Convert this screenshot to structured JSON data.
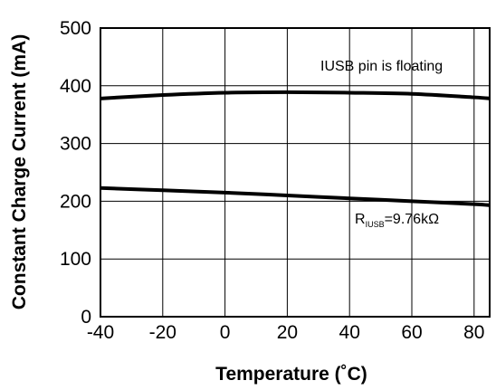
{
  "chart_data": {
    "type": "line",
    "xlabel": "Temperature (˚C)",
    "ylabel": "Constant Charge Current (mA)",
    "xlim": [
      -40,
      85
    ],
    "ylim": [
      0,
      500
    ],
    "xticks": [
      -40,
      -20,
      0,
      20,
      40,
      60,
      80
    ],
    "yticks": [
      0,
      100,
      200,
      300,
      400,
      500
    ],
    "grid": true,
    "series": [
      {
        "x": [
          -40,
          -20,
          0,
          20,
          40,
          60,
          80,
          85
        ],
        "values": [
          378,
          384,
          388,
          389,
          388,
          386,
          380,
          378
        ]
      },
      {
        "x": [
          -40,
          -20,
          0,
          20,
          40,
          60,
          80,
          85
        ],
        "values": [
          223,
          219,
          215,
          210,
          205,
          200,
          195,
          193
        ]
      }
    ],
    "annotations": [
      {
        "text": "IUSB pin is floating"
      },
      {
        "prefix": "R",
        "subscript": "IUSB",
        "suffix": "=9.76kΩ"
      }
    ]
  }
}
